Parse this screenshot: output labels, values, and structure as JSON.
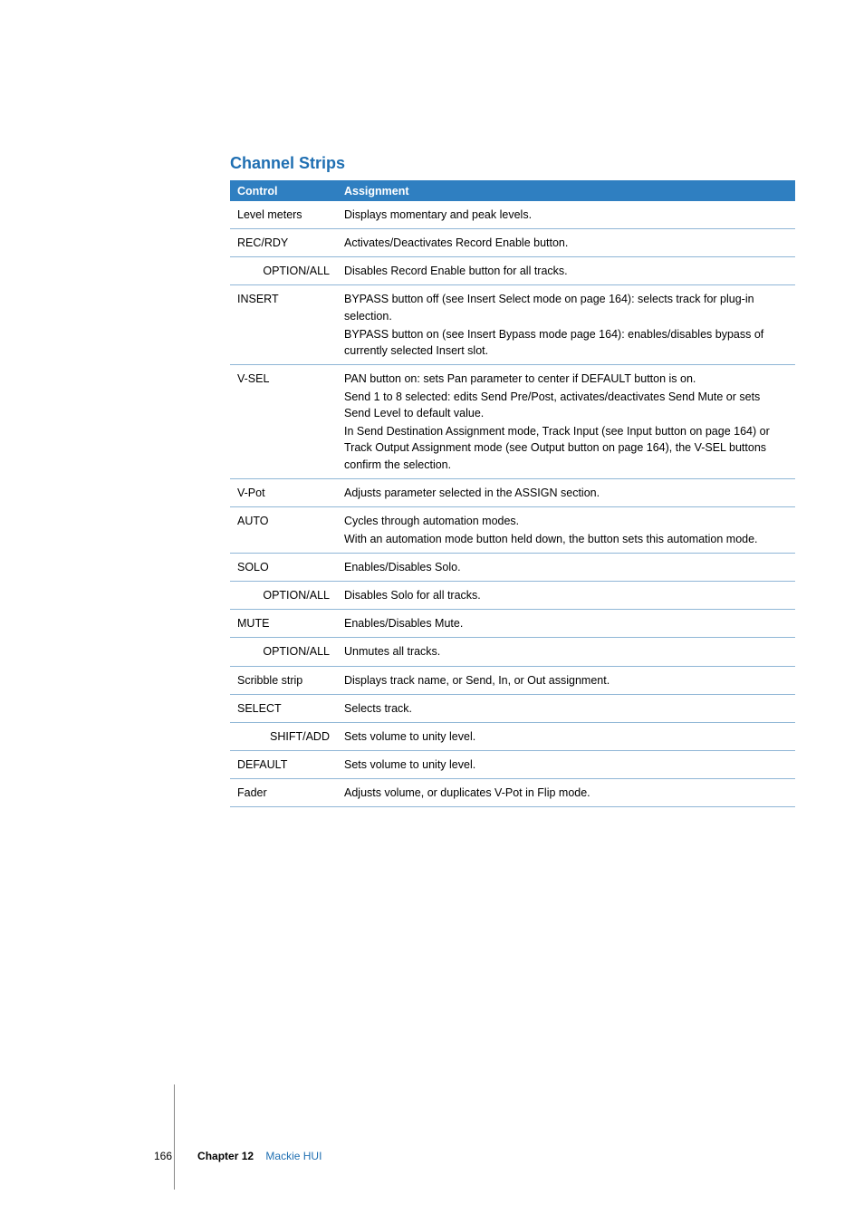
{
  "section_title": "Channel Strips",
  "table": {
    "headers": {
      "control": "Control",
      "assignment": "Assignment"
    },
    "rows": [
      {
        "control": "Level meters",
        "indent": false,
        "assignment": [
          "Displays momentary and peak levels."
        ]
      },
      {
        "control": "REC/RDY",
        "indent": false,
        "assignment": [
          "Activates/Deactivates Record Enable button."
        ]
      },
      {
        "control": "OPTION/ALL",
        "indent": true,
        "assignment": [
          "Disables Record Enable button for all tracks."
        ]
      },
      {
        "control": "INSERT",
        "indent": false,
        "assignment": [
          "BYPASS button off (see Insert Select mode on page 164):  selects track for plug-in selection.",
          "BYPASS button on (see Insert Bypass mode page 164):  enables/disables bypass of currently selected Insert slot."
        ]
      },
      {
        "control": "V-SEL",
        "indent": false,
        "assignment": [
          "PAN button on:  sets Pan parameter to center if DEFAULT button is on.",
          "Send 1 to 8 selected:  edits Send Pre/Post, activates/deactivates Send Mute or sets Send Level to default value.",
          "In Send Destination Assignment mode, Track Input (see Input button on page 164) or Track Output Assignment mode (see Output button on page 164), the V-SEL buttons  confirm the selection."
        ]
      },
      {
        "control": "V-Pot",
        "indent": false,
        "assignment": [
          "Adjusts parameter selected in the ASSIGN section."
        ]
      },
      {
        "control": "AUTO",
        "indent": false,
        "assignment": [
          "Cycles through automation modes.",
          "With an automation mode button held down, the button sets this automation mode."
        ]
      },
      {
        "control": "SOLO",
        "indent": false,
        "assignment": [
          "Enables/Disables Solo."
        ]
      },
      {
        "control": "OPTION/ALL",
        "indent": true,
        "assignment": [
          "Disables Solo for all tracks."
        ]
      },
      {
        "control": "MUTE",
        "indent": false,
        "assignment": [
          "Enables/Disables Mute."
        ]
      },
      {
        "control": "OPTION/ALL",
        "indent": true,
        "assignment": [
          "Unmutes all tracks."
        ]
      },
      {
        "control": "Scribble strip",
        "indent": false,
        "assignment": [
          "Displays track name, or Send, In, or Out assignment."
        ]
      },
      {
        "control": "SELECT",
        "indent": false,
        "assignment": [
          "Selects track."
        ]
      },
      {
        "control": "SHIFT/ADD",
        "indent": true,
        "assignment": [
          "Sets volume to unity level."
        ]
      },
      {
        "control": "DEFAULT",
        "indent": false,
        "assignment": [
          "Sets volume to unity level."
        ]
      },
      {
        "control": "Fader",
        "indent": false,
        "assignment": [
          "Adjusts volume, or duplicates V-Pot in Flip mode."
        ]
      }
    ]
  },
  "footer": {
    "page": "166",
    "chapter_label": "Chapter 12",
    "chapter_name": "Mackie HUI"
  },
  "colors": {
    "accent": "#1f6fb2",
    "header_bg": "#2f7fc1",
    "row_border": "#8fb6d6"
  }
}
